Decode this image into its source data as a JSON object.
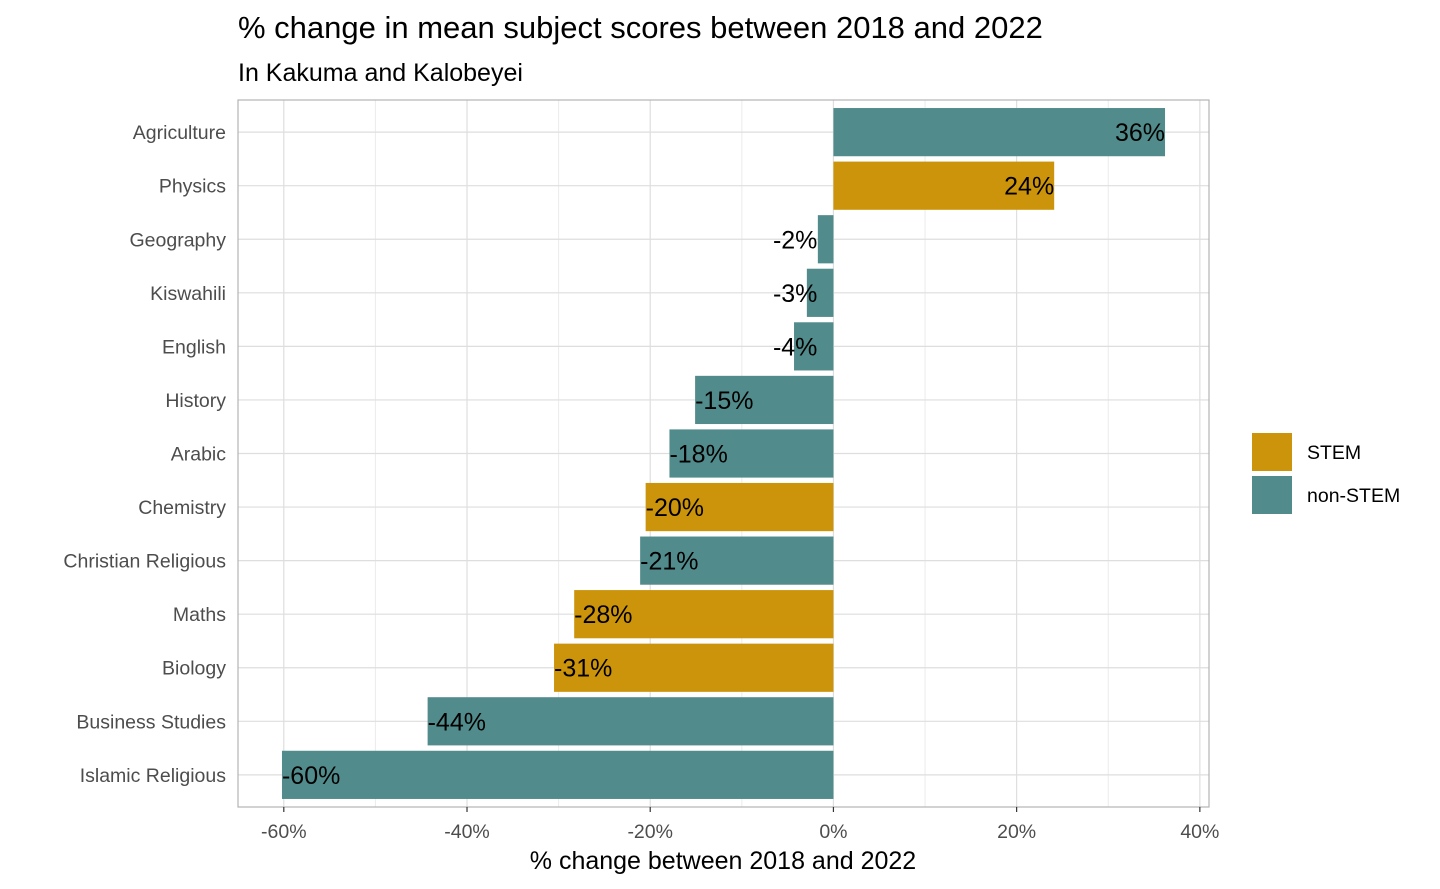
{
  "chart_data": {
    "type": "bar",
    "orientation": "horizontal",
    "title": "% change in mean subject scores between 2018 and 2022",
    "subtitle": "In Kakuma and Kalobeyei",
    "xlabel": "% change between 2018 and 2022",
    "ylabel": "",
    "xlim": [
      -65,
      41
    ],
    "x_ticks": [
      -60,
      -40,
      -20,
      0,
      20,
      40
    ],
    "x_tick_labels": [
      "-60%",
      "-40%",
      "-20%",
      "0%",
      "20%",
      "40%"
    ],
    "grid": true,
    "legend_position": "right",
    "categories": [
      "Agriculture",
      "Physics",
      "Geography",
      "Kiswahili",
      "English",
      "History",
      "Arabic",
      "Chemistry",
      "Christian Religious",
      "Maths",
      "Biology",
      "Business Studies",
      "Islamic Religious"
    ],
    "values": [
      36.2,
      24.1,
      -1.7,
      -2.9,
      -4.3,
      -15.1,
      -17.9,
      -20.5,
      -21.1,
      -28.3,
      -30.5,
      -44.3,
      -60.2
    ],
    "value_labels": [
      "36%",
      "24%",
      "-2%",
      "-3%",
      "-4%",
      "-15%",
      "-18%",
      "-20%",
      "-21%",
      "-28%",
      "-31%",
      "-44%",
      "-60%"
    ],
    "groups": [
      "non-STEM",
      "STEM",
      "non-STEM",
      "non-STEM",
      "non-STEM",
      "non-STEM",
      "non-STEM",
      "STEM",
      "non-STEM",
      "STEM",
      "STEM",
      "non-STEM",
      "non-STEM"
    ],
    "legend": [
      {
        "name": "STEM",
        "color": "#cc940a"
      },
      {
        "name": "non-STEM",
        "color": "#528b8b"
      }
    ]
  }
}
